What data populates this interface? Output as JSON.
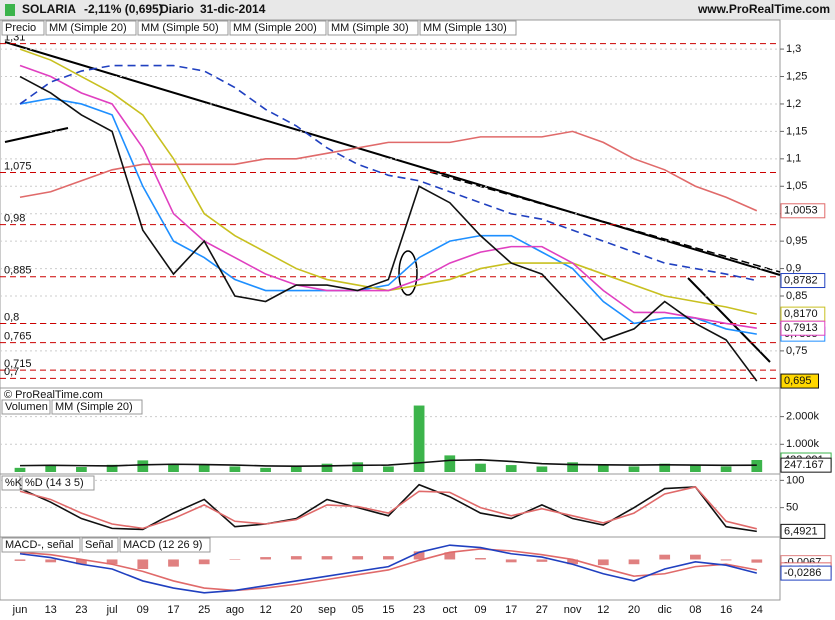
{
  "header": {
    "symbol": "SOLARIA",
    "change": "-2,11% (0,695)",
    "period": "Diario",
    "date": "31-dic-2014",
    "site": "www.ProRealTime.com",
    "copyright": "© ProRealTime.com"
  },
  "chart_data": [
    {
      "type": "line",
      "legend_title": "Precio",
      "categories": [
        "jun",
        "13",
        "23",
        "jul",
        "09",
        "17",
        "25",
        "ago",
        "12",
        "20",
        "sep",
        "05",
        "15",
        "23",
        "oct",
        "09",
        "17",
        "27",
        "nov",
        "12",
        "20",
        "dic",
        "08",
        "16",
        "24"
      ],
      "ylim": [
        0.686,
        1.353
      ],
      "yticks": [
        {
          "value": 0.75,
          "label": "0,75"
        },
        {
          "value": 0.8,
          "label": "0,8"
        },
        {
          "value": 0.85,
          "label": "0,85"
        },
        {
          "value": 0.9,
          "label": "0,9"
        },
        {
          "value": 0.95,
          "label": "0,95"
        },
        {
          "value": 1,
          "label": "1"
        },
        {
          "value": 1.05,
          "label": "1,05"
        },
        {
          "value": 1.1,
          "label": "1,1"
        },
        {
          "value": 1.15,
          "label": "1,15"
        },
        {
          "value": 1.2,
          "label": "1,2"
        },
        {
          "value": 1.25,
          "label": "1,25"
        },
        {
          "value": 1.3,
          "label": "1,3"
        }
      ],
      "levels": [
        {
          "value": 1.31,
          "label": "1,31"
        },
        {
          "value": 1.075,
          "label": "1,075"
        },
        {
          "value": 0.98,
          "label": "0,98"
        },
        {
          "value": 0.885,
          "label": "0,885"
        },
        {
          "value": 0.8,
          "label": "0,8"
        },
        {
          "value": 0.765,
          "label": "0,765"
        },
        {
          "value": 0.715,
          "label": "0,715"
        },
        {
          "value": 0.7,
          "label": "0,7"
        }
      ],
      "series": [
        {
          "name": "MM (Simple 20)",
          "color": "#1e8fff",
          "values": [
            1.2,
            1.21,
            1.2,
            1.18,
            1.05,
            0.95,
            0.92,
            0.88,
            0.86,
            0.86,
            0.86,
            0.86,
            0.87,
            0.92,
            0.95,
            0.96,
            0.96,
            0.93,
            0.9,
            0.84,
            0.8,
            0.81,
            0.81,
            0.79,
            0.7805
          ],
          "value_labels": [
            null,
            null,
            null,
            null,
            null,
            null,
            null,
            null,
            null,
            null,
            null,
            null,
            null,
            null,
            null,
            null,
            null,
            null,
            null,
            null,
            null,
            null,
            null,
            null,
            "0,7805"
          ]
        },
        {
          "name": "MM (Simple 50)",
          "color": "#c8c020",
          "values": [
            1.3,
            1.28,
            1.25,
            1.22,
            1.18,
            1.1,
            1.0,
            0.96,
            0.93,
            0.9,
            0.88,
            0.87,
            0.86,
            0.87,
            0.88,
            0.9,
            0.91,
            0.91,
            0.91,
            0.89,
            0.87,
            0.85,
            0.84,
            0.83,
            0.817
          ],
          "value_labels": [
            null,
            null,
            null,
            null,
            null,
            null,
            null,
            null,
            null,
            null,
            null,
            null,
            null,
            null,
            null,
            null,
            null,
            null,
            null,
            null,
            null,
            null,
            null,
            null,
            "0,8170"
          ]
        },
        {
          "name": "MM (Simple 200)",
          "color": "#e06a6a",
          "values": [
            1.03,
            1.04,
            1.06,
            1.08,
            1.09,
            1.09,
            1.09,
            1.09,
            1.1,
            1.1,
            1.11,
            1.12,
            1.13,
            1.13,
            1.13,
            1.14,
            1.14,
            1.14,
            1.15,
            1.13,
            1.1,
            1.08,
            1.05,
            1.03,
            1.0053
          ],
          "value_labels": [
            null,
            null,
            null,
            null,
            null,
            null,
            null,
            null,
            null,
            null,
            null,
            null,
            null,
            null,
            null,
            null,
            null,
            null,
            null,
            null,
            null,
            null,
            null,
            null,
            "1,0053"
          ]
        },
        {
          "name": "MM (Simple 30)",
          "color": "#e040c0",
          "values": [
            1.27,
            1.25,
            1.22,
            1.2,
            1.12,
            1.0,
            0.95,
            0.92,
            0.89,
            0.87,
            0.86,
            0.86,
            0.86,
            0.88,
            0.91,
            0.93,
            0.94,
            0.94,
            0.91,
            0.86,
            0.82,
            0.82,
            0.81,
            0.8,
            0.7913
          ],
          "value_labels": [
            null,
            null,
            null,
            null,
            null,
            null,
            null,
            null,
            null,
            null,
            null,
            null,
            null,
            null,
            null,
            null,
            null,
            null,
            null,
            null,
            null,
            null,
            null,
            null,
            "0,7913"
          ]
        },
        {
          "name": "MM (Simple 130)",
          "color": "#2040c0",
          "dashed": true,
          "values": [
            1.2,
            1.24,
            1.26,
            1.27,
            1.27,
            1.27,
            1.26,
            1.23,
            1.19,
            1.16,
            1.12,
            1.09,
            1.07,
            1.06,
            1.04,
            1.02,
            1.0,
            0.99,
            0.97,
            0.95,
            0.93,
            0.91,
            0.9,
            0.89,
            0.8782
          ],
          "value_labels": [
            null,
            null,
            null,
            null,
            null,
            null,
            null,
            null,
            null,
            null,
            null,
            null,
            null,
            null,
            null,
            null,
            null,
            null,
            null,
            null,
            null,
            null,
            null,
            null,
            "0,8782"
          ]
        },
        {
          "name": "Precio",
          "color": "#111111",
          "legend": false,
          "values": [
            1.25,
            1.22,
            1.18,
            1.15,
            0.97,
            0.89,
            0.95,
            0.85,
            0.84,
            0.87,
            0.87,
            0.86,
            0.88,
            1.05,
            1.02,
            0.96,
            0.91,
            0.89,
            0.83,
            0.77,
            0.79,
            0.84,
            0.8,
            0.77,
            0.695
          ],
          "value_labels": [
            null,
            null,
            null,
            null,
            null,
            null,
            null,
            null,
            null,
            null,
            null,
            null,
            null,
            null,
            null,
            null,
            null,
            null,
            null,
            null,
            null,
            null,
            null,
            null,
            "0,695"
          ]
        }
      ]
    },
    {
      "type": "bar",
      "ylim": [
        0,
        2600000
      ],
      "yticks": [
        {
          "value": 1000000,
          "label": "1.000k"
        },
        {
          "value": 2000000,
          "label": "2.000k"
        }
      ],
      "series": [
        {
          "name": "Volumen",
          "color": "#3cb44b",
          "style": "bar",
          "values": [
            150000,
            250000,
            180000,
            260000,
            420000,
            300000,
            250000,
            200000,
            150000,
            200000,
            300000,
            350000,
            200000,
            2400000,
            600000,
            300000,
            250000,
            200000,
            350000,
            250000,
            200000,
            300000,
            250000,
            200000,
            433091
          ],
          "value_labels": [
            null,
            null,
            null,
            null,
            null,
            null,
            null,
            null,
            null,
            null,
            null,
            null,
            null,
            null,
            null,
            null,
            null,
            null,
            null,
            null,
            null,
            null,
            null,
            null,
            "433.091"
          ]
        },
        {
          "name": "MM (Simple 20)",
          "color": "#111111",
          "values": [
            230000,
            240000,
            230000,
            220000,
            260000,
            280000,
            270000,
            250000,
            220000,
            210000,
            220000,
            240000,
            250000,
            330000,
            420000,
            440000,
            380000,
            300000,
            270000,
            260000,
            250000,
            260000,
            250000,
            240000,
            247167
          ],
          "value_labels": [
            null,
            null,
            null,
            null,
            null,
            null,
            null,
            null,
            null,
            null,
            null,
            null,
            null,
            null,
            null,
            null,
            null,
            null,
            null,
            null,
            null,
            null,
            null,
            null,
            "247.167"
          ]
        }
      ]
    },
    {
      "type": "line",
      "ylim": [
        -2,
        108
      ],
      "yticks": [
        50,
        100
      ],
      "series": [
        {
          "name": "%K",
          "color": "#111111",
          "values": [
            85,
            60,
            30,
            12,
            10,
            40,
            65,
            15,
            20,
            30,
            65,
            50,
            35,
            92,
            70,
            40,
            30,
            55,
            30,
            18,
            50,
            85,
            88,
            15,
            6.4921
          ],
          "value_labels": [
            null,
            null,
            null,
            null,
            null,
            null,
            null,
            null,
            null,
            null,
            null,
            null,
            null,
            null,
            null,
            null,
            null,
            null,
            null,
            null,
            null,
            null,
            null,
            null,
            "6,4921"
          ]
        },
        {
          "name": "%D (14 3 5)",
          "color": "#e06a6a",
          "values": [
            80,
            65,
            40,
            20,
            12,
            30,
            55,
            25,
            20,
            28,
            55,
            52,
            40,
            80,
            78,
            50,
            35,
            48,
            35,
            22,
            40,
            75,
            88,
            25,
            11.2
          ]
        }
      ]
    },
    {
      "type": "line",
      "ylim": [
        -0.085,
        0.045
      ],
      "yticks": [],
      "series": [
        {
          "name": "MACD-, señal",
          "color": "#e08080",
          "style": "bar",
          "values": [
            -0.003,
            -0.006,
            -0.01,
            -0.01,
            -0.02,
            -0.015,
            -0.01,
            0.0,
            0.005,
            0.007,
            0.007,
            0.007,
            0.007,
            0.017,
            0.015,
            0.003,
            -0.006,
            -0.005,
            -0.01,
            -0.012,
            -0.01,
            0.01,
            0.01,
            -0.002,
            -0.0067
          ],
          "value_labels": [
            null,
            null,
            null,
            null,
            null,
            null,
            null,
            null,
            null,
            null,
            null,
            null,
            null,
            null,
            null,
            null,
            null,
            null,
            null,
            null,
            null,
            null,
            null,
            null,
            "-0,0067"
          ]
        },
        {
          "name": "Señal",
          "color": "#e06a6a",
          "values": [
            0.015,
            0.01,
            0.0,
            -0.01,
            -0.025,
            -0.045,
            -0.06,
            -0.065,
            -0.06,
            -0.052,
            -0.042,
            -0.032,
            -0.022,
            -0.002,
            0.015,
            0.022,
            0.018,
            0.01,
            0.0,
            -0.018,
            -0.035,
            -0.03,
            -0.015,
            -0.01,
            -0.0218
          ],
          "value_labels": [
            null,
            null,
            null,
            null,
            null,
            null,
            null,
            null,
            null,
            null,
            null,
            null,
            null,
            null,
            null,
            null,
            null,
            null,
            null,
            null,
            null,
            null,
            null,
            null,
            "-0,0218"
          ]
        },
        {
          "name": "MACD (12 26 9)",
          "color": "#2040c0",
          "values": [
            0.012,
            0.004,
            -0.01,
            -0.02,
            -0.045,
            -0.06,
            -0.07,
            -0.065,
            -0.055,
            -0.045,
            -0.035,
            -0.025,
            -0.015,
            0.015,
            0.03,
            0.025,
            0.012,
            0.005,
            -0.01,
            -0.03,
            -0.045,
            -0.02,
            -0.005,
            -0.012,
            -0.0286
          ],
          "value_labels": [
            null,
            null,
            null,
            null,
            null,
            null,
            null,
            null,
            null,
            null,
            null,
            null,
            null,
            null,
            null,
            null,
            null,
            null,
            null,
            null,
            null,
            null,
            null,
            null,
            "-0,0286"
          ]
        }
      ]
    }
  ]
}
